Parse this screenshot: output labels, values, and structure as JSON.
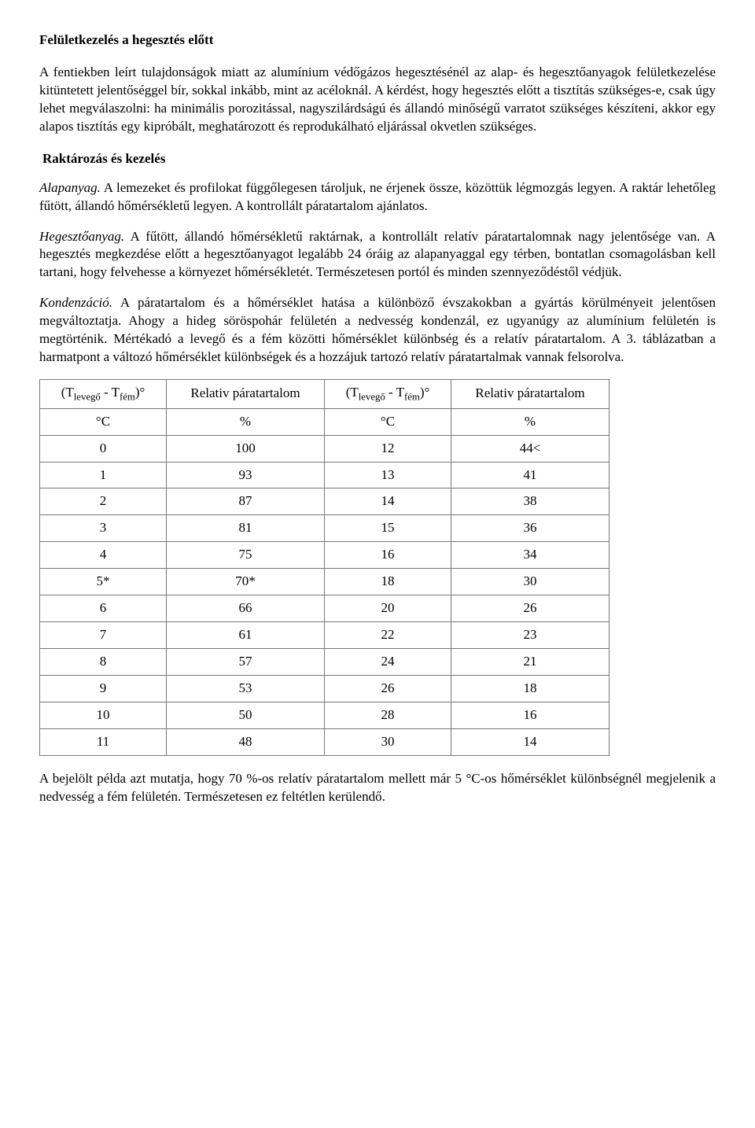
{
  "heading1": "Felületkezelés a hegesztés előtt",
  "para1": "A fentiekben leírt tulajdonságok miatt az alumínium védőgázos hegesztésénél az alap- és hegesztőanyagok felületkezelése kitüntetett jelentőséggel bír, sokkal inkább, mint az acéloknál. A kérdést, hogy hegesztés előtt a tisztítás szükséges-e, csak úgy lehet megválaszolni: ha minimális porozitással, nagyszilárdságú és állandó minőségű varratot szükséges készíteni, akkor egy alapos tisztítás egy kipróbált, meghatározott és reprodukálható eljárással okvetlen szükséges.",
  "heading2": "Raktározás és kezelés",
  "para2_lead": "Alapanyag.",
  "para2_rest": " A lemezeket és profilokat függőlegesen tároljuk, ne érjenek össze, közöttük légmozgás legyen. A raktár lehetőleg fűtött, állandó hőmérsékletű legyen. A kontrollált páratartalom ajánlatos.",
  "para3_lead": "Hegesztőanyag.",
  "para3_rest": " A fűtött, állandó hőmérsékletű raktárnak, a kontrollált relatív páratartalomnak nagy jelentősége van. A hegesztés megkezdése előtt a hegesztőanyagot legalább 24 óráig az alapanyaggal egy térben, bontatlan csomagolásban kell tartani, hogy felvehesse a környezet hőmérsékletét. Természetesen portól és minden szennyeződéstől védjük.",
  "para4_lead": "Kondenzáció.",
  "para4_rest": " A páratartalom és a hőmérséklet hatása a különböző évszakokban a gyártás körülményeit jelentősen megváltoztatja. Ahogy a hideg söröspohár felületén a nedvesség kondenzál, ez ugyanúgy az alumínium felületén is megtörténik. Mértékadó a levegő és a fém közötti hőmérséklet különbség és a relatív páratartalom. A 3. táblázatban a harmatpont a változó hőmérséklet különbségek és a hozzájuk tartozó relatív páratartalmak vannak felsorolva.",
  "table": {
    "head": {
      "c1_pre": "(T",
      "c1_sub1": "levegő",
      "c1_mid": " - T",
      "c1_sub2": "fém",
      "c1_post": ")°",
      "c2": "Relativ páratartalom",
      "c3_pre": "(T",
      "c3_sub1": "levegő",
      "c3_mid": " - T",
      "c3_sub2": "fém",
      "c3_post": ")°",
      "c4": "Relativ páratartalom"
    },
    "units": {
      "c1": "°C",
      "c2": "%",
      "c3": "°C",
      "c4": "%"
    },
    "rows": [
      {
        "a": "0",
        "b": "100",
        "c": "12",
        "d": "44<"
      },
      {
        "a": "1",
        "b": "93",
        "c": "13",
        "d": "41"
      },
      {
        "a": "2",
        "b": "87",
        "c": "14",
        "d": "38"
      },
      {
        "a": "3",
        "b": "81",
        "c": "15",
        "d": "36"
      },
      {
        "a": "4",
        "b": "75",
        "c": "16",
        "d": "34"
      },
      {
        "a": "5*",
        "b": "70*",
        "c": "18",
        "d": "30"
      },
      {
        "a": "6",
        "b": "66",
        "c": "20",
        "d": "26"
      },
      {
        "a": "7",
        "b": "61",
        "c": "22",
        "d": "23"
      },
      {
        "a": "8",
        "b": "57",
        "c": "24",
        "d": "21"
      },
      {
        "a": "9",
        "b": "53",
        "c": "26",
        "d": "18"
      },
      {
        "a": "10",
        "b": "50",
        "c": "28",
        "d": "16"
      },
      {
        "a": "11",
        "b": "48",
        "c": "30",
        "d": "14"
      }
    ]
  },
  "para5": "A bejelölt példa azt mutatja, hogy 70 %-os relatív páratartalom mellett már 5 °C-os hőmérséklet különbségnél megjelenik a nedvesség a fém felületén. Természetesen ez feltétlen kerülendő."
}
